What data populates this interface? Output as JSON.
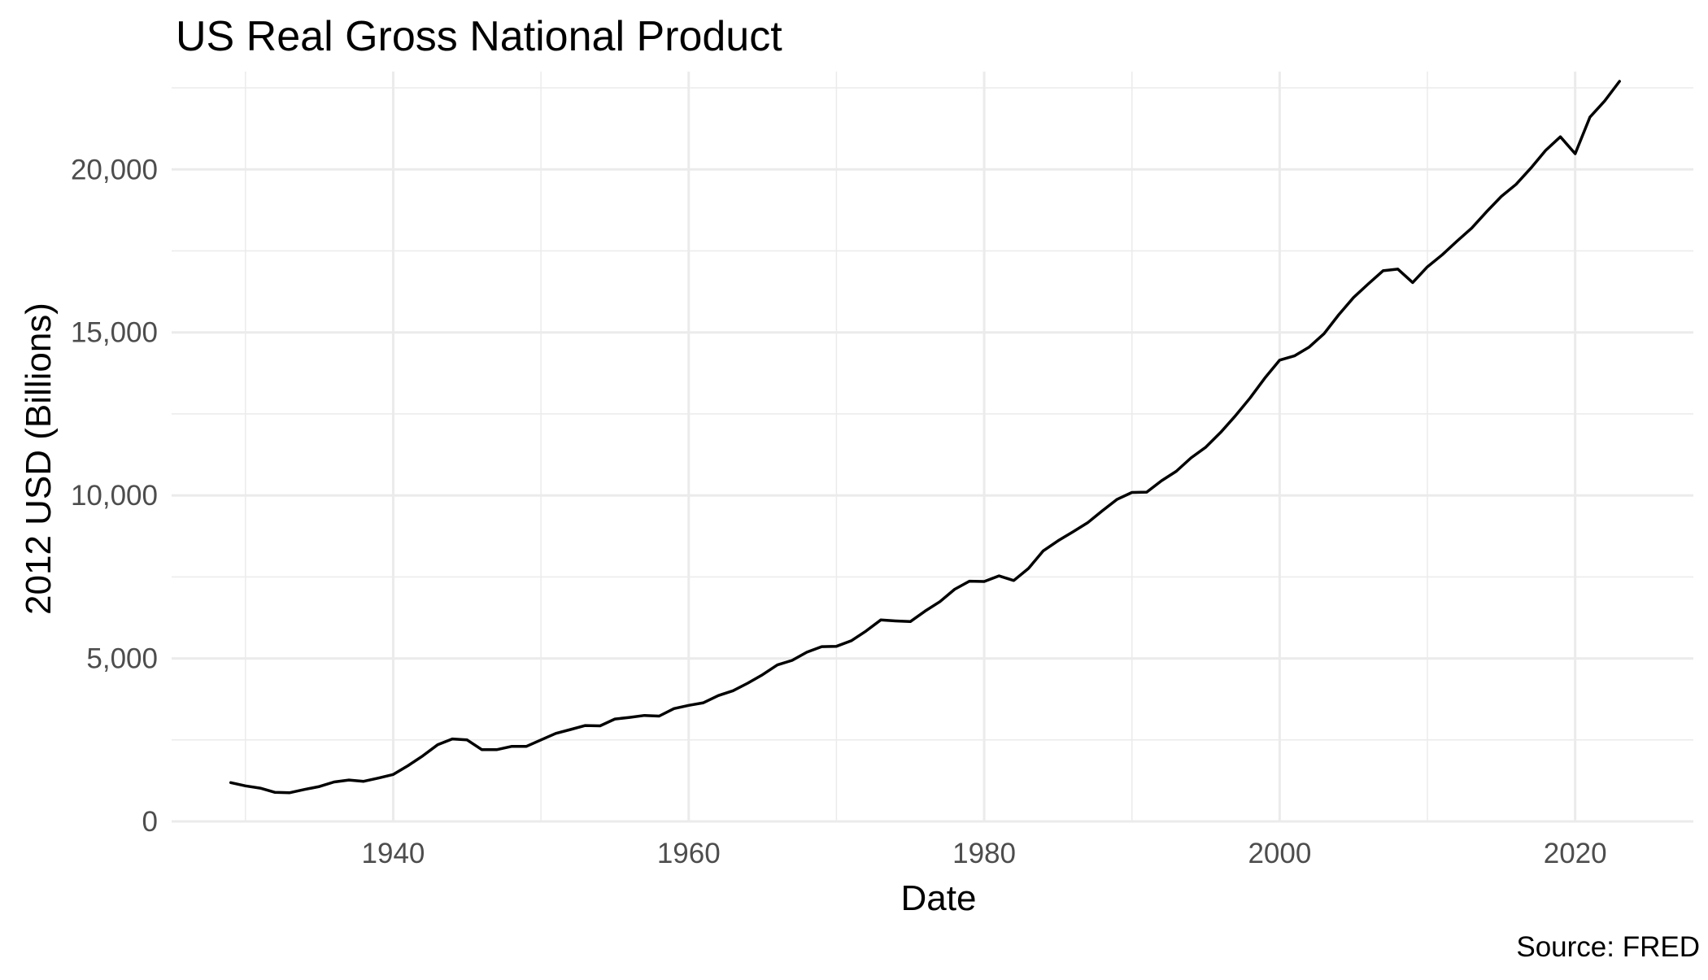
{
  "chart_data": {
    "type": "line",
    "title": "US Real Gross National Product",
    "xlabel": "Date",
    "ylabel": "2012 USD (Billions)",
    "caption": "Source: FRED",
    "xlim": [
      1925,
      2028
    ],
    "ylim": [
      0,
      23000
    ],
    "x_ticks": [
      1940,
      1960,
      1980,
      2000,
      2020
    ],
    "x_tick_labels": [
      "1940",
      "1960",
      "1980",
      "2000",
      "2020"
    ],
    "x_minor_ticks": [
      1930,
      1950,
      1970,
      1990,
      2010
    ],
    "y_ticks": [
      0,
      5000,
      10000,
      15000,
      20000
    ],
    "y_tick_labels": [
      "0",
      "5,000",
      "10,000",
      "15,000",
      "20,000"
    ],
    "y_minor_ticks": [
      2500,
      7500,
      12500,
      17500,
      22500
    ],
    "grid": true,
    "legend": "none",
    "line_color": "#000000",
    "series": [
      {
        "x": [
          1929,
          1930,
          1931,
          1932,
          1933,
          1934,
          1935,
          1936,
          1937,
          1938,
          1939,
          1940,
          1941,
          1942,
          1943,
          1944,
          1945,
          1946,
          1947,
          1948,
          1949,
          1950,
          1951,
          1952,
          1953,
          1954,
          1955,
          1956,
          1957,
          1958,
          1959,
          1960,
          1961,
          1962,
          1963,
          1964,
          1965,
          1966,
          1967,
          1968,
          1969,
          1970,
          1971,
          1972,
          1973,
          1974,
          1975,
          1976,
          1977,
          1978,
          1979,
          1980,
          1981,
          1982,
          1983,
          1984,
          1985,
          1986,
          1987,
          1988,
          1989,
          1990,
          1991,
          1992,
          1993,
          1994,
          1995,
          1996,
          1997,
          1998,
          1999,
          2000,
          2001,
          2002,
          2003,
          2004,
          2005,
          2006,
          2007,
          2008,
          2009,
          2010,
          2011,
          2012,
          2013,
          2014,
          2015,
          2016,
          2017,
          2018,
          2019,
          2020,
          2021,
          2022,
          2023
        ],
        "values": [
          1190,
          1090,
          1020,
          890,
          880,
          980,
          1070,
          1210,
          1270,
          1230,
          1330,
          1440,
          1710,
          2010,
          2350,
          2530,
          2500,
          2200,
          2200,
          2300,
          2300,
          2500,
          2700,
          2820,
          2940,
          2930,
          3140,
          3190,
          3250,
          3230,
          3460,
          3560,
          3640,
          3860,
          4010,
          4240,
          4500,
          4800,
          4940,
          5190,
          5360,
          5370,
          5540,
          5840,
          6180,
          6150,
          6130,
          6450,
          6740,
          7120,
          7370,
          7360,
          7530,
          7390,
          7760,
          8300,
          8610,
          8880,
          9160,
          9530,
          9880,
          10090,
          10100,
          10450,
          10740,
          11150,
          11480,
          11930,
          12440,
          12990,
          13600,
          14150,
          14280,
          14550,
          14960,
          15540,
          16070,
          16490,
          16890,
          16940,
          16530,
          17010,
          17380,
          17800,
          18200,
          18700,
          19170,
          19540,
          20040,
          20580,
          21000,
          20480,
          21600,
          22100,
          22700
        ]
      }
    ]
  }
}
